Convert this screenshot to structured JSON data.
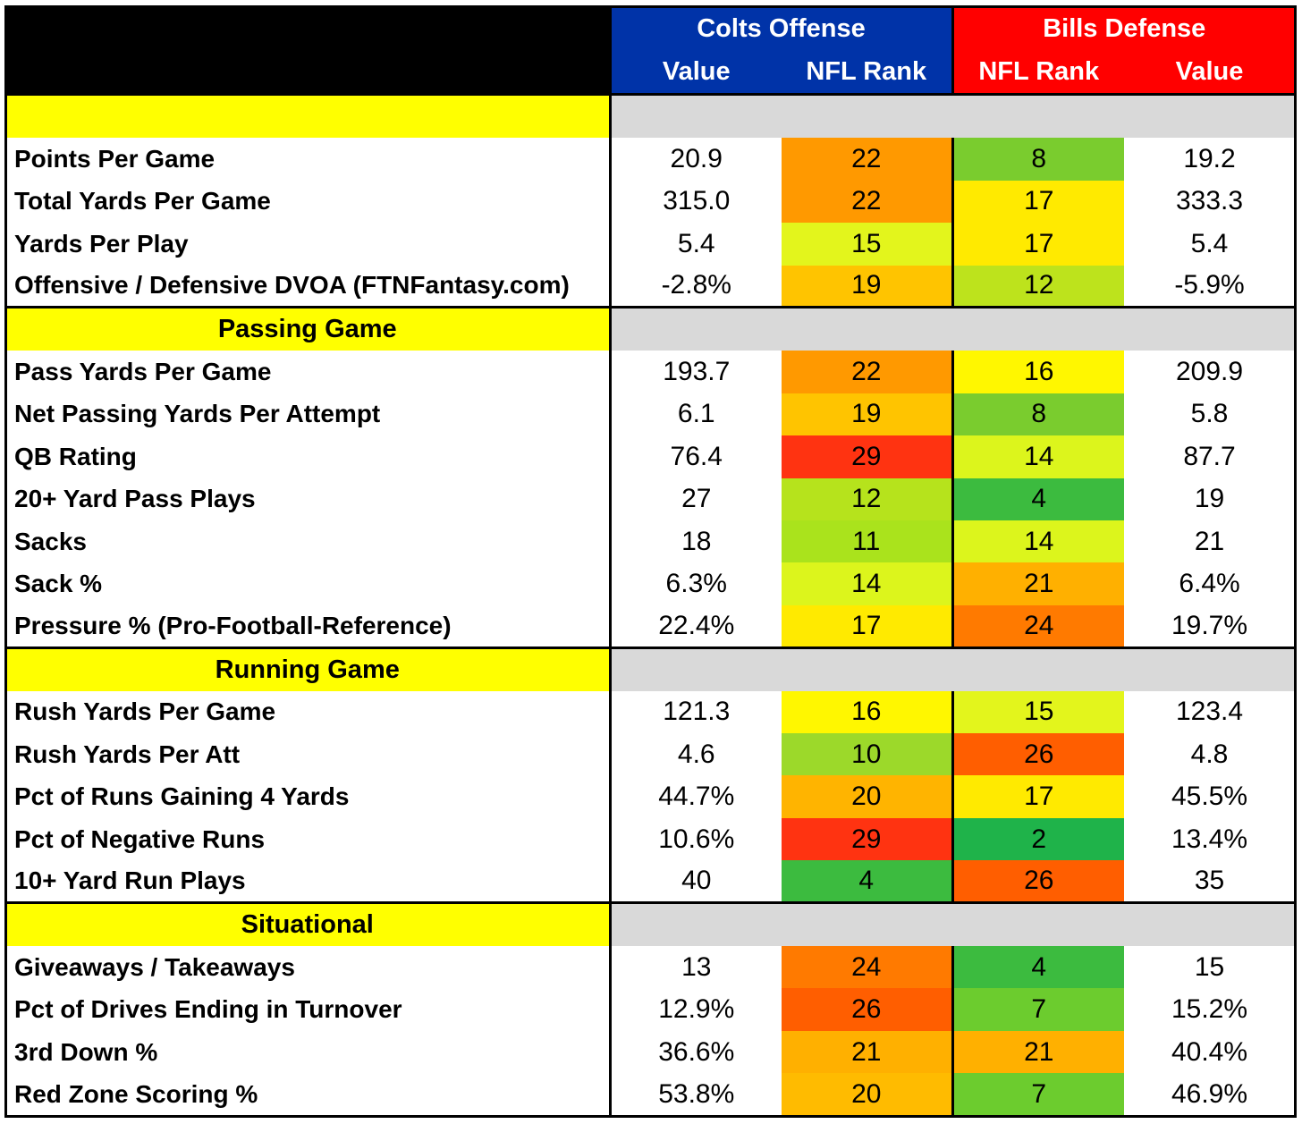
{
  "header": {
    "colts_title": "Colts Offense",
    "bills_title": "Bills Defense",
    "col_value": "Value",
    "col_rank": "NFL Rank",
    "colts_color": "#0033a8",
    "bills_color": "#ff0000"
  },
  "sections": [
    {
      "title": "",
      "rows": [
        {
          "metric": "Points Per Game",
          "colts_value": "20.9",
          "colts_rank": "22",
          "colts_color": "#ff9900",
          "bills_rank": "8",
          "bills_color": "#7acc2e",
          "bills_value": "19.2"
        },
        {
          "metric": "Total Yards Per Game",
          "colts_value": "315.0",
          "colts_rank": "22",
          "colts_color": "#ff9900",
          "bills_rank": "17",
          "bills_color": "#ffea00",
          "bills_value": "333.3"
        },
        {
          "metric": "Yards Per Play",
          "colts_value": "5.4",
          "colts_rank": "15",
          "colts_color": "#e3f51c",
          "bills_rank": "17",
          "bills_color": "#ffea00",
          "bills_value": "5.4"
        },
        {
          "metric": "Offensive / Defensive DVOA (FTNFantasy.com)",
          "colts_value": "-2.8%",
          "colts_rank": "19",
          "colts_color": "#ffc400",
          "bills_rank": "12",
          "bills_color": "#bde31c",
          "bills_value": "-5.9%"
        }
      ]
    },
    {
      "title": "Passing Game",
      "rows": [
        {
          "metric": "Pass Yards Per Game",
          "colts_value": "193.7",
          "colts_rank": "22",
          "colts_color": "#ff9900",
          "bills_rank": "16",
          "bills_color": "#fff700",
          "bills_value": "209.9"
        },
        {
          "metric": "Net Passing Yards Per Attempt",
          "colts_value": "6.1",
          "colts_rank": "19",
          "colts_color": "#ffc400",
          "bills_rank": "8",
          "bills_color": "#7acc2e",
          "bills_value": "5.8"
        },
        {
          "metric": "QB Rating",
          "colts_value": "76.4",
          "colts_rank": "29",
          "colts_color": "#ff3311",
          "bills_rank": "14",
          "bills_color": "#dcf51c",
          "bills_value": "87.7"
        },
        {
          "metric": "20+ Yard Pass Plays",
          "colts_value": "27",
          "colts_rank": "12",
          "colts_color": "#b6e31c",
          "bills_rank": "4",
          "bills_color": "#3cbb3f",
          "bills_value": "19"
        },
        {
          "metric": "Sacks",
          "colts_value": "18",
          "colts_rank": "11",
          "colts_color": "#aae31c",
          "bills_rank": "14",
          "bills_color": "#dcf51c",
          "bills_value": "21"
        },
        {
          "metric": "Sack %",
          "colts_value": "6.3%",
          "colts_rank": "14",
          "colts_color": "#dcf51c",
          "bills_rank": "21",
          "bills_color": "#ffb000",
          "bills_value": "6.4%"
        },
        {
          "metric": "Pressure % (Pro-Football-Reference)",
          "colts_value": "22.4%",
          "colts_rank": "17",
          "colts_color": "#ffea00",
          "bills_rank": "24",
          "bills_color": "#ff7a00",
          "bills_value": "19.7%"
        }
      ]
    },
    {
      "title": "Running Game",
      "rows": [
        {
          "metric": "Rush Yards Per Game",
          "colts_value": "121.3",
          "colts_rank": "16",
          "colts_color": "#fff700",
          "bills_rank": "15",
          "bills_color": "#e3f51c",
          "bills_value": "123.4"
        },
        {
          "metric": "Rush Yards Per Att",
          "colts_value": "4.6",
          "colts_rank": "10",
          "colts_color": "#9cd92a",
          "bills_rank": "26",
          "bills_color": "#ff5e00",
          "bills_value": "4.8"
        },
        {
          "metric": "Pct of Runs Gaining 4 Yards",
          "colts_value": "44.7%",
          "colts_rank": "20",
          "colts_color": "#ffb400",
          "bills_rank": "17",
          "bills_color": "#ffea00",
          "bills_value": "45.5%"
        },
        {
          "metric": "Pct of Negative Runs",
          "colts_value": "10.6%",
          "colts_rank": "29",
          "colts_color": "#ff3311",
          "bills_rank": "2",
          "bills_color": "#1fb34a",
          "bills_value": "13.4%"
        },
        {
          "metric": "10+ Yard Run Plays",
          "colts_value": "40",
          "colts_rank": "4",
          "colts_color": "#3cbb3f",
          "bills_rank": "26",
          "bills_color": "#ff5e00",
          "bills_value": "35"
        }
      ]
    },
    {
      "title": "Situational",
      "rows": [
        {
          "metric": "Giveaways / Takeaways",
          "colts_value": "13",
          "colts_rank": "24",
          "colts_color": "#ff7a00",
          "bills_rank": "4",
          "bills_color": "#3cbb3f",
          "bills_value": "15"
        },
        {
          "metric": "Pct of Drives Ending in Turnover",
          "colts_value": "12.9%",
          "colts_rank": "26",
          "colts_color": "#ff5e00",
          "bills_rank": "7",
          "bills_color": "#6ccc2e",
          "bills_value": "15.2%"
        },
        {
          "metric": "3rd Down %",
          "colts_value": "36.6%",
          "colts_rank": "21",
          "colts_color": "#ffb000",
          "bills_rank": "21",
          "bills_color": "#ffb000",
          "bills_value": "40.4%"
        },
        {
          "metric": "Red Zone Scoring %",
          "colts_value": "53.8%",
          "colts_rank": "20",
          "colts_color": "#ffbb00",
          "bills_rank": "7",
          "bills_color": "#6ccc2e",
          "bills_value": "46.9%"
        }
      ]
    }
  ]
}
